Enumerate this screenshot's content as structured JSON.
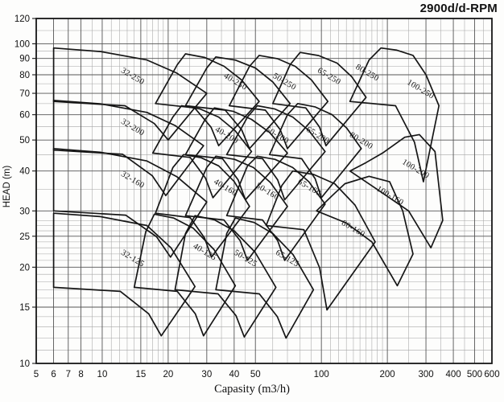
{
  "title": "2900d/d-RPM",
  "x_axis_label": "Capasity (m3/h)",
  "y_axis_label": "HEAD (m)",
  "colors": {
    "background": "#fdfdfc",
    "frame": "#161616",
    "grid_major": "#555555",
    "grid_minor": "#a5a5a5",
    "envelope_line": "#161616",
    "text": "#111111"
  },
  "chart_data": {
    "type": "area",
    "title": "2900d/d-RPM",
    "xlabel": "Capasity (m3/h)",
    "ylabel": "HEAD (m)",
    "x_scale": "log",
    "y_scale": "log",
    "xlim": [
      5,
      600
    ],
    "ylim": [
      10,
      120
    ],
    "grid": true,
    "legend_position": "none",
    "x_ticks": [
      5,
      6,
      7,
      8,
      10,
      15,
      20,
      30,
      40,
      50,
      100,
      200,
      300,
      400,
      500,
      600
    ],
    "x_minor": [
      9,
      11,
      12,
      13,
      14,
      16,
      17,
      18,
      19,
      22,
      25,
      35,
      45,
      60,
      70,
      80,
      90,
      110,
      120,
      130,
      140,
      150,
      160,
      170,
      180,
      190,
      250,
      350,
      450,
      550
    ],
    "y_ticks": [
      10,
      15,
      20,
      25,
      30,
      40,
      50,
      60,
      70,
      80,
      90,
      100,
      120
    ],
    "y_minor": [
      11,
      12,
      13,
      14,
      16,
      17,
      18,
      19,
      21,
      22,
      23,
      24,
      26,
      27,
      28,
      35,
      45,
      55,
      65,
      75,
      85,
      95,
      110
    ],
    "label_rotation_deg": 31,
    "regions": [
      {
        "label": "32-250",
        "label_q": 13.6,
        "label_h": 78,
        "outline": [
          [
            6,
            66
          ],
          [
            6,
            97
          ],
          [
            9.8,
            94.6
          ],
          [
            16,
            89
          ],
          [
            21.9,
            81
          ],
          [
            30,
            70
          ],
          [
            20,
            50
          ],
          [
            17.3,
            56.3
          ],
          [
            12.7,
            64
          ]
        ]
      },
      {
        "label": "40-250",
        "label_q": 40,
        "label_h": 75,
        "outline": [
          [
            17.5,
            65
          ],
          [
            22,
            86
          ],
          [
            24,
            93
          ],
          [
            29.4,
            90.6
          ],
          [
            36,
            85
          ],
          [
            43.3,
            77
          ],
          [
            52,
            66
          ],
          [
            34,
            48
          ],
          [
            31.4,
            54.8
          ],
          [
            26.4,
            63
          ]
        ]
      },
      {
        "label": "50-250",
        "label_q": 67,
        "label_h": 75,
        "outline": [
          [
            24,
            64
          ],
          [
            30,
            84
          ],
          [
            33,
            91
          ],
          [
            40.6,
            88.9
          ],
          [
            50,
            84
          ],
          [
            60,
            76
          ],
          [
            72,
            65
          ],
          [
            47,
            47
          ],
          [
            43.3,
            53.8
          ],
          [
            36.4,
            62
          ]
        ]
      },
      {
        "label": "65-250",
        "label_q": 107,
        "label_h": 78,
        "outline": [
          [
            38,
            64
          ],
          [
            47,
            85
          ],
          [
            52,
            92
          ],
          [
            62.9,
            89.9
          ],
          [
            76,
            85
          ],
          [
            90.2,
            77
          ],
          [
            107,
            66
          ],
          [
            70,
            47
          ],
          [
            65,
            53.8
          ],
          [
            55.5,
            62
          ]
        ]
      },
      {
        "label": "80-250",
        "label_q": 160,
        "label_h": 80,
        "outline": [
          [
            60,
            65
          ],
          [
            72,
            86
          ],
          [
            80,
            94
          ],
          [
            97.2,
            91.9
          ],
          [
            118,
            87
          ],
          [
            137.4,
            79
          ],
          [
            160,
            68
          ],
          [
            105,
            48
          ],
          [
            98.2,
            54.8
          ],
          [
            84.9,
            63
          ]
        ]
      },
      {
        "label": "100-250",
        "label_q": 280,
        "label_h": 71,
        "outline": [
          [
            135,
            66
          ],
          [
            165,
            89
          ],
          [
            187,
            97
          ],
          [
            221,
            95.5
          ],
          [
            262,
            92
          ],
          [
            300,
            80
          ],
          [
            344,
            64
          ],
          [
            292,
            37
          ],
          [
            266,
            49.2
          ],
          [
            218,
            64
          ]
        ]
      },
      {
        "label": "32-200",
        "label_q": 13.6,
        "label_h": 54,
        "outline": [
          [
            6,
            46.5
          ],
          [
            6,
            66.5
          ],
          [
            9.8,
            64.9
          ],
          [
            16,
            61
          ],
          [
            21.5,
            55.5
          ],
          [
            29,
            48
          ],
          [
            19.5,
            33.5
          ],
          [
            16.9,
            38.7
          ],
          [
            12.4,
            45.1
          ]
        ]
      },
      {
        "label": "40-200",
        "label_q": 36.5,
        "label_h": 51,
        "outline": [
          [
            17,
            45.5
          ],
          [
            21,
            59
          ],
          [
            23,
            64
          ],
          [
            28,
            62.5
          ],
          [
            34,
            59
          ],
          [
            40.4,
            53.5
          ],
          [
            48,
            46
          ],
          [
            32,
            33
          ],
          [
            29.6,
            38
          ],
          [
            25.2,
            44.1
          ]
        ]
      },
      {
        "label": "50-200",
        "label_q": 62,
        "label_h": 51,
        "outline": [
          [
            24,
            45
          ],
          [
            29.5,
            58
          ],
          [
            32.5,
            63
          ],
          [
            39.5,
            61.5
          ],
          [
            48,
            58
          ],
          [
            58,
            52.8
          ],
          [
            70,
            45.5
          ],
          [
            45,
            32.5
          ],
          [
            41.7,
            37.5
          ],
          [
            35.4,
            43.7
          ]
        ]
      },
      {
        "label": "65-200",
        "label_q": 95,
        "label_h": 51,
        "outline": [
          [
            37,
            45
          ],
          [
            46,
            59
          ],
          [
            51,
            64
          ],
          [
            61.4,
            62.5
          ],
          [
            74,
            59
          ],
          [
            87.7,
            53.5
          ],
          [
            104,
            46
          ],
          [
            68,
            32.5
          ],
          [
            63.2,
            37.5
          ],
          [
            53.9,
            43.7
          ]
        ]
      },
      {
        "label": "80-200",
        "label_q": 150,
        "label_h": 49,
        "outline": [
          [
            58,
            45
          ],
          [
            70,
            60
          ],
          [
            78,
            65
          ],
          [
            93.5,
            63.5
          ],
          [
            112,
            60
          ],
          [
            130.5,
            54.5
          ],
          [
            152,
            47
          ],
          [
            100,
            33
          ],
          [
            93.7,
            37.8
          ],
          [
            81.3,
            43.7
          ]
        ]
      },
      {
        "label": "100-200",
        "label_q": 266,
        "label_h": 40,
        "outline": [
          [
            135,
            40
          ],
          [
            160,
            42.5
          ],
          [
            190,
            45.5
          ],
          [
            240,
            51
          ],
          [
            280,
            52
          ],
          [
            330,
            46
          ],
          [
            358,
            28
          ],
          [
            316,
            23
          ],
          [
            250,
            30
          ],
          [
            180,
            35
          ]
        ]
      },
      {
        "label": "32-160",
        "label_q": 13.6,
        "label_h": 37,
        "outline": [
          [
            6,
            30
          ],
          [
            6,
            47
          ],
          [
            9.8,
            45.8
          ],
          [
            16,
            43
          ],
          [
            21.9,
            38.4
          ],
          [
            30,
            32
          ],
          [
            20.5,
            21.5
          ],
          [
            17.7,
            24.9
          ],
          [
            12.8,
            29.1
          ]
        ]
      },
      {
        "label": "40-160",
        "label_q": 36,
        "label_h": 35,
        "outline": [
          [
            17.5,
            29.5
          ],
          [
            21,
            41
          ],
          [
            23.5,
            45
          ],
          [
            28.3,
            44
          ],
          [
            34,
            41.5
          ],
          [
            40,
            37.1
          ],
          [
            47,
            31
          ],
          [
            31.5,
            21.5
          ],
          [
            29.3,
            24.7
          ],
          [
            25.2,
            28.6
          ]
        ]
      },
      {
        "label": "50-160",
        "label_q": 56,
        "label_h": 34,
        "outline": [
          [
            24,
            29
          ],
          [
            30,
            41
          ],
          [
            33,
            44.5
          ],
          [
            40.2,
            43.5
          ],
          [
            49,
            41
          ],
          [
            58.6,
            36.8
          ],
          [
            70,
            31
          ],
          [
            46,
            21
          ],
          [
            42.6,
            24.2
          ],
          [
            35.9,
            28.1
          ]
        ]
      },
      {
        "label": "65-160",
        "label_q": 87,
        "label_h": 35,
        "outline": [
          [
            37,
            29
          ],
          [
            46,
            41.5
          ],
          [
            51,
            44.5
          ],
          [
            61.4,
            43.5
          ],
          [
            74,
            41
          ],
          [
            87.7,
            37
          ],
          [
            104,
            31.5
          ],
          [
            68,
            21
          ],
          [
            63.2,
            24.2
          ],
          [
            53.9,
            28.1
          ]
        ]
      },
      {
        "label": "80-160",
        "label_q": 138,
        "label_h": 26,
        "outline": [
          [
            56,
            27
          ],
          [
            66,
            36
          ],
          [
            74,
            40
          ],
          [
            92.2,
            39
          ],
          [
            115,
            36.5
          ],
          [
            142.3,
            31.3
          ],
          [
            176,
            24
          ],
          [
            106,
            14.7
          ],
          [
            98.2,
            19.9
          ],
          [
            83.2,
            26.2
          ]
        ]
      },
      {
        "label": "100-160",
        "label_q": 203,
        "label_h": 33,
        "outline": [
          [
            95,
            30
          ],
          [
            112,
            33.5
          ],
          [
            128,
            36.5
          ],
          [
            165,
            38.5
          ],
          [
            205,
            37
          ],
          [
            235,
            30
          ],
          [
            262,
            22
          ],
          [
            222,
            17.5
          ],
          [
            170,
            24
          ],
          [
            130,
            27.5
          ]
        ]
      },
      {
        "label": "32-125",
        "label_q": 13.6,
        "label_h": 21,
        "outline": [
          [
            6,
            17.3
          ],
          [
            6,
            29.5
          ],
          [
            9.8,
            28.8
          ],
          [
            16,
            27
          ],
          [
            20.6,
            23
          ],
          [
            26.5,
            17.4
          ],
          [
            18.6,
            12.2
          ],
          [
            16.3,
            14.3
          ],
          [
            12.1,
            16.8
          ]
        ]
      },
      {
        "label": "40-125",
        "label_q": 29,
        "label_h": 22,
        "outline": [
          [
            14,
            17.3
          ],
          [
            15.8,
            25.8
          ],
          [
            17.3,
            29.3
          ],
          [
            21.2,
            28.5
          ],
          [
            26,
            26.5
          ],
          [
            32.4,
            22.7
          ],
          [
            40.5,
            17.5
          ],
          [
            29,
            12.2
          ],
          [
            26.6,
            14.3
          ],
          [
            22,
            16.8
          ]
        ]
      },
      {
        "label": "50-125",
        "label_q": 44.5,
        "label_h": 21,
        "outline": [
          [
            21.5,
            17
          ],
          [
            24,
            25.5
          ],
          [
            26.5,
            29
          ],
          [
            32.6,
            28.1
          ],
          [
            40,
            26
          ],
          [
            49.8,
            22.3
          ],
          [
            62,
            17.3
          ],
          [
            44.5,
            12.1
          ],
          [
            40.8,
            14.1
          ],
          [
            33.8,
            16.5
          ]
        ]
      },
      {
        "label": "65-125",
        "label_q": 69,
        "label_h": 21,
        "outline": [
          [
            33,
            17
          ],
          [
            37,
            25.5
          ],
          [
            40.5,
            28.5
          ],
          [
            49.3,
            27.6
          ],
          [
            60,
            25.5
          ],
          [
            74.3,
            21.9
          ],
          [
            92,
            17
          ],
          [
            69,
            12
          ],
          [
            63,
            14
          ],
          [
            52.1,
            16.5
          ]
        ]
      }
    ]
  }
}
